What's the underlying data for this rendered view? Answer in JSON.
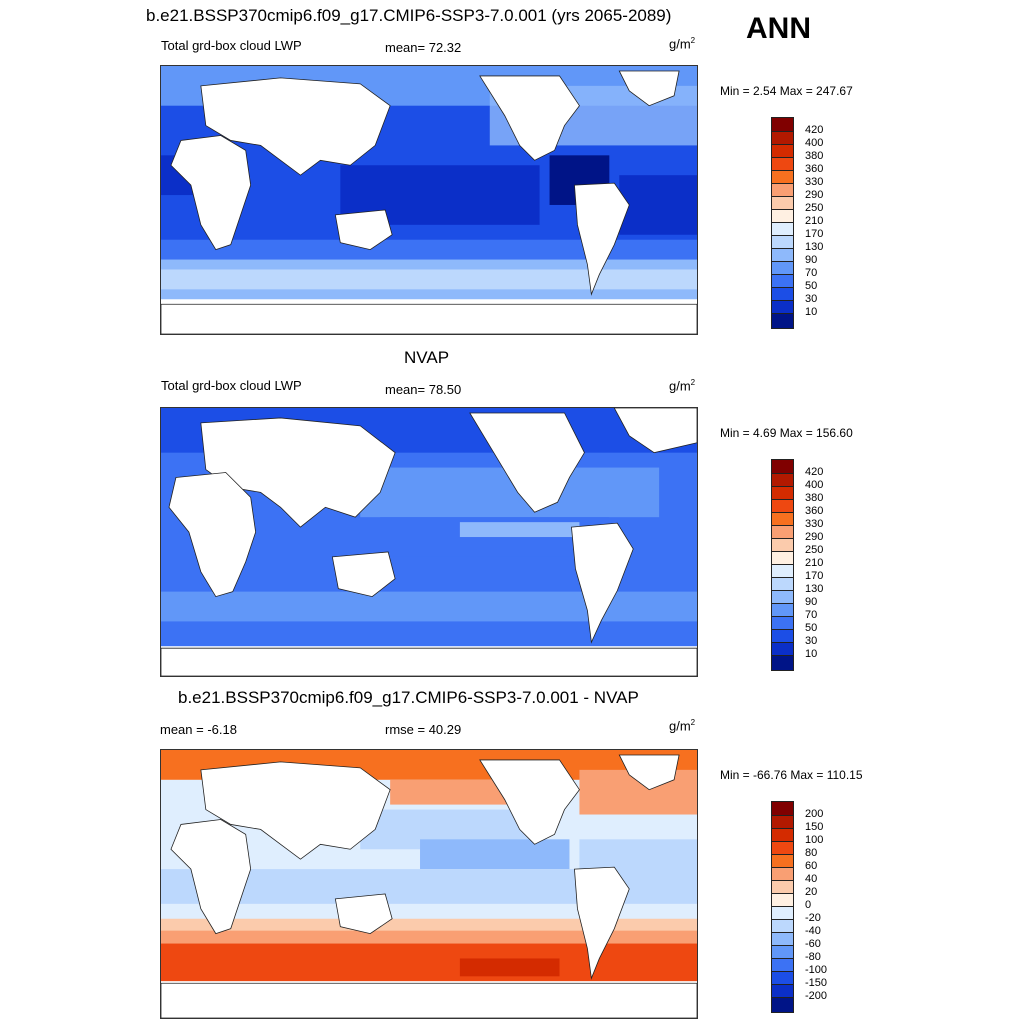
{
  "season": "ANN",
  "panels": [
    {
      "title": "b.e21.BSSP370cmip6.f09_g17.CMIP6-SSP3-7.0.001 (yrs 2065-2089)",
      "left_label": "Total grd-box cloud LWP",
      "center_label": "mean=  72.32",
      "units_base": "g/m",
      "units_exp": "2",
      "minmax": "Min =   2.54 Max = 247.67",
      "map_type": "model-lwp"
    },
    {
      "title": "NVAP",
      "left_label": "Total grd-box cloud LWP",
      "center_label": "mean=  78.50",
      "units_base": "g/m",
      "units_exp": "2",
      "minmax": "Min =   4.69 Max = 156.60",
      "map_type": "obs-lwp"
    },
    {
      "title": "b.e21.BSSP370cmip6.f09_g17.CMIP6-SSP3-7.0.001 - NVAP",
      "left_label": "mean =  -6.18",
      "center_label": "rmse =  40.29",
      "units_base": "g/m",
      "units_exp": "2",
      "minmax": "Min = -66.76 Max = 110.15",
      "map_type": "difference"
    }
  ],
  "colorbars": {
    "lwp": {
      "labels": [
        "420",
        "400",
        "380",
        "360",
        "330",
        "290",
        "250",
        "210",
        "170",
        "130",
        "90",
        "70",
        "50",
        "30",
        "10"
      ],
      "colors": [
        "#800000",
        "#b21900",
        "#d42b00",
        "#ee4811",
        "#f7701f",
        "#f99f73",
        "#fbcbac",
        "#fff0e2",
        "#dfeefe",
        "#bcd8fd",
        "#8eb9fb",
        "#6197f8",
        "#3c72f4",
        "#1c4ee6",
        "#0b2fc8",
        "#001487"
      ]
    },
    "diff": {
      "labels": [
        "200",
        "150",
        "100",
        "80",
        "60",
        "40",
        "20",
        "0",
        "-20",
        "-40",
        "-60",
        "-80",
        "-100",
        "-150",
        "-200"
      ],
      "colors": [
        "#800000",
        "#b21900",
        "#d42b00",
        "#ee4811",
        "#f7701f",
        "#f99f73",
        "#fbcbac",
        "#fff0e2",
        "#dfeefe",
        "#bcd8fd",
        "#8eb9fb",
        "#6197f8",
        "#3c72f4",
        "#1c4ee6",
        "#0b2fc8",
        "#001487"
      ]
    }
  }
}
